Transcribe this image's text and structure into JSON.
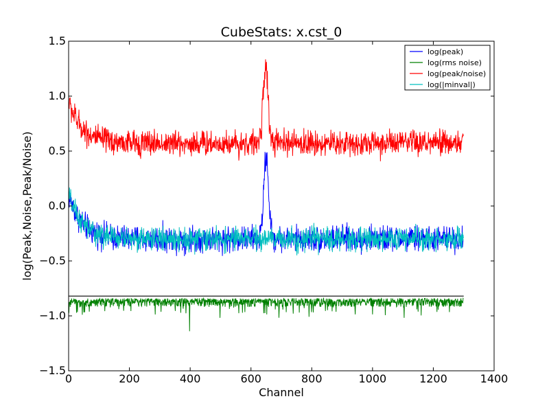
{
  "chart_data": {
    "type": "line",
    "title": "CubeStats: x.cst_0",
    "xlabel": "Channel",
    "ylabel": "log(Peak,Noise,Peak/Noise)",
    "xlim": [
      0,
      1400
    ],
    "ylim": [
      -1.5,
      1.5
    ],
    "x_ticks": [
      0,
      200,
      400,
      600,
      800,
      1000,
      1200,
      1400
    ],
    "y_ticks": [
      -1.5,
      -1.0,
      -0.5,
      0.0,
      0.5,
      1.0,
      1.5
    ],
    "x_tick_labels": [
      "0",
      "200",
      "400",
      "600",
      "800",
      "1000",
      "1200",
      "1400"
    ],
    "y_tick_labels": [
      "−1.5",
      "−1.0",
      "−0.5",
      "0.0",
      "0.5",
      "1.0",
      "1.5"
    ],
    "grid": false,
    "legend_position": "top-right",
    "n_channels": 1300,
    "series": [
      {
        "name": "log(peak)",
        "color": "#0000ff",
        "baseline": -0.3,
        "noise_amplitude": 0.09,
        "edge_start": 0.1,
        "edge_decay_channels": 45,
        "peak_center": 650,
        "peak_value": 0.45,
        "peak_width_channels": 8
      },
      {
        "name": "log(rms noise)",
        "color": "#008000",
        "baseline": -0.86,
        "noise_amplitude": 0.05,
        "level": -0.82,
        "min_value": -1.14
      },
      {
        "name": "log(peak/noise)",
        "color": "#ff0000",
        "baseline": 0.57,
        "noise_amplitude": 0.09,
        "edge_start": 0.95,
        "edge_decay_channels": 45,
        "peak_center": 648,
        "peak_value": 1.28,
        "peak_width_channels": 8
      },
      {
        "name": "log(|minval|)",
        "color": "#00bfbf",
        "baseline": -0.3,
        "noise_amplitude": 0.08,
        "edge_start": 0.1,
        "edge_decay_channels": 45
      }
    ],
    "hline": {
      "y": -0.82,
      "color": "#000000"
    }
  }
}
